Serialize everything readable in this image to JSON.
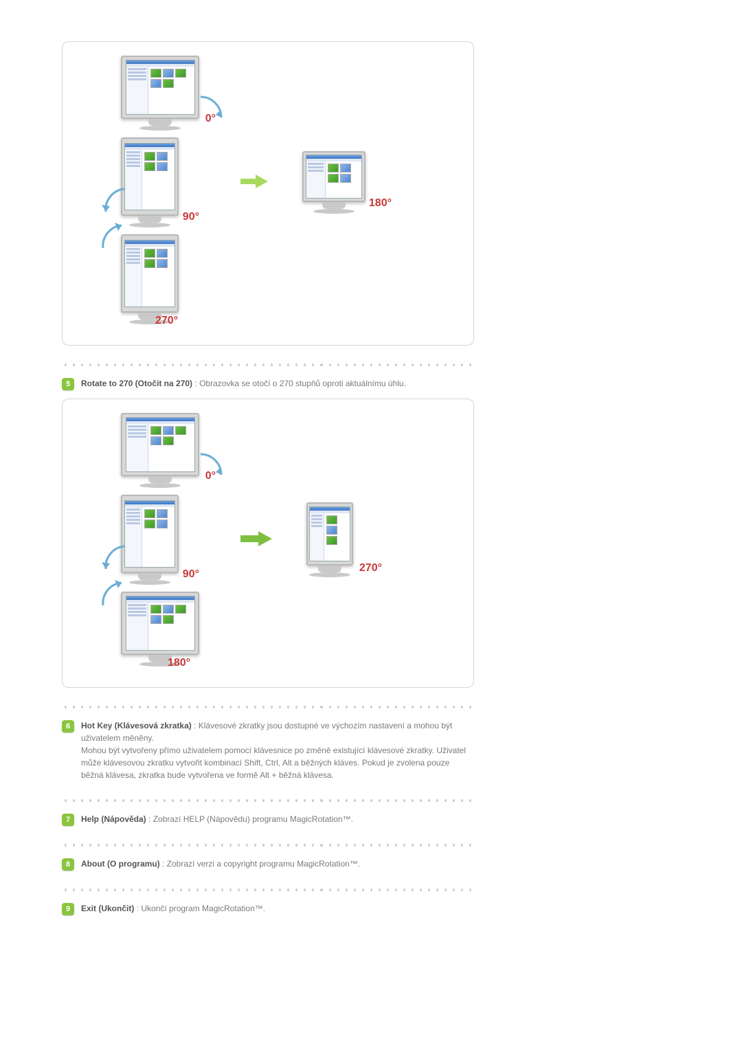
{
  "colors": {
    "bullet_bg": "#8bc53f",
    "bullet_border": "#6ea82a",
    "arrow_flow_light": "#a7d95f",
    "arrow_flow_dark": "#7fbf3f",
    "rot_arrow_color": "#6aaed6",
    "angle_label_color": "#c93838",
    "box_border": "#d5d5d5",
    "dot_color": "#cacaca"
  },
  "diagram1": {
    "angles": {
      "a0": "0°",
      "a90": "90°",
      "a180": "180°",
      "a270": "270°"
    }
  },
  "diagram2": {
    "angles": {
      "a0": "0°",
      "a90": "90°",
      "a180": "180°",
      "a270": "270°"
    }
  },
  "items": [
    {
      "num": "5",
      "title": "Rotate to 270 (Otočit na 270)",
      "desc": "Obrazovka se otočí o 270 stupňů oproti aktuálnímu úhlu."
    },
    {
      "num": "6",
      "title": "Hot Key (Klávesová zkratka)",
      "desc": "Klávesové zkratky jsou dostupné ve výchozím nastavení a mohou být uživatelem měněny.",
      "desc2": "Mohou být vytvořeny přímo uživatelem pomocí klávesnice po změně existující klávesové zkratky. Uživatel může klávesovou zkratku vytvořit kombinací Shift, Ctrl, Alt a běžných kláves. Pokud je zvolena pouze běžná klávesa, zkratka bude vytvořena ve formě Alt + běžná klávesa."
    },
    {
      "num": "7",
      "title": "Help (Nápověda)",
      "desc": "Zobrazí HELP (Nápovědu) programu MagicRotation™."
    },
    {
      "num": "8",
      "title": "About (O programu)",
      "desc": "Zobrazí verzi a copyright programu MagicRotation™."
    },
    {
      "num": "9",
      "title": "Exit (Ukončit)",
      "desc": "Ukončí program MagicRotation™."
    }
  ]
}
